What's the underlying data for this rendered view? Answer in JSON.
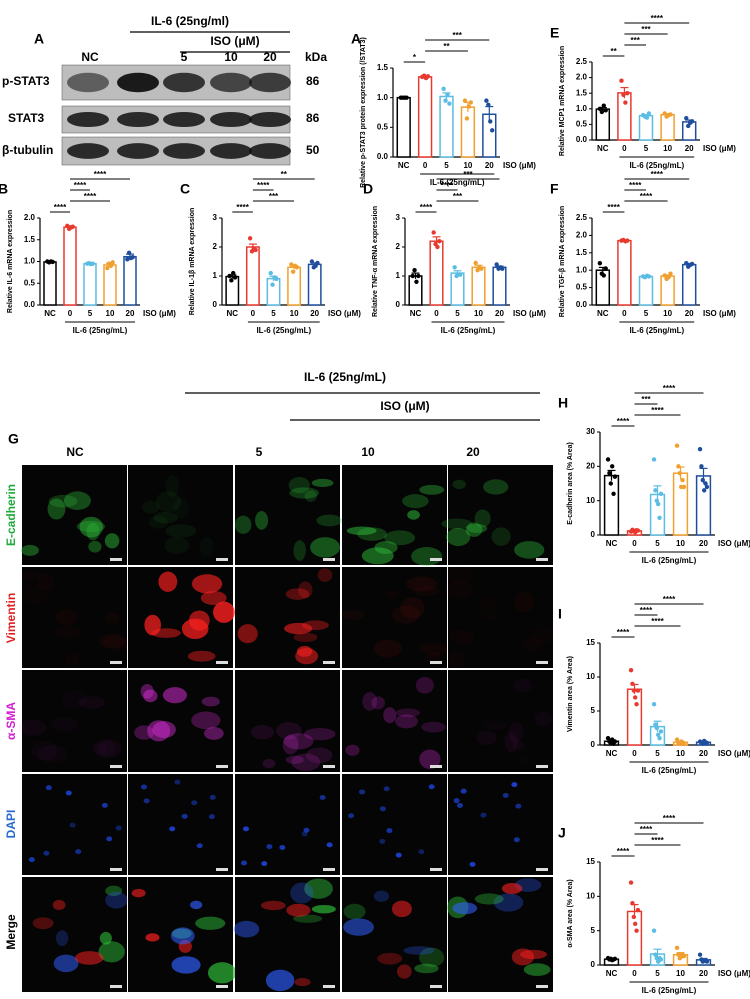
{
  "blot": {
    "panel": "A",
    "treatment": "IL-6 (25ng/ml)",
    "subtreatment": "ISO (μM)",
    "lanes": [
      "NC",
      "5",
      "10",
      "20"
    ],
    "unit": "kDa",
    "rows": [
      {
        "label": "p-STAT3",
        "kda": "86"
      },
      {
        "label": "STAT3",
        "kda": "86"
      },
      {
        "label": "β-tubulin",
        "kda": "50"
      }
    ]
  },
  "images": {
    "panel": "G",
    "treatment": "IL-6 (25ng/mL)",
    "subtreatment": "ISO (μM)",
    "columns": [
      "NC",
      "5",
      "10",
      "20"
    ],
    "rows": [
      "E-cadherin",
      "Vimentin",
      "α-SMA",
      "DAPI",
      "Merge"
    ]
  },
  "chart_data": [
    {
      "type": "bar",
      "panel": "A",
      "ylabel": "Relative p-STAT3 protein expression (/STAT3)",
      "categories": [
        "NC",
        "0",
        "5",
        "10",
        "20"
      ],
      "xlabel": "ISO (μM)",
      "group_label": "IL-6 (25ng/mL)",
      "ylim": [
        0,
        1.5
      ],
      "yticks": [
        {
          "value": 0,
          "label": "0.0"
        },
        {
          "value": 0.5,
          "label": "0.5"
        },
        {
          "value": 1,
          "label": "1.0"
        },
        {
          "value": 1.5,
          "label": "1.5"
        }
      ],
      "colors": [
        "#000000",
        "#e8392f",
        "#5bbde3",
        "#f0a030",
        "#1f4e9c"
      ],
      "values": [
        1.0,
        1.35,
        1.02,
        0.84,
        0.72
      ],
      "errors": [
        0,
        0.015,
        0.06,
        0.08,
        0.13
      ],
      "points": [
        [
          1,
          1,
          1,
          1
        ],
        [
          1.35,
          1.37,
          1.33,
          1.36
        ],
        [
          1.15,
          0.95,
          1.05,
          0.9
        ],
        [
          0.95,
          0.65,
          0.85,
          0.92
        ],
        [
          0.95,
          0.88,
          0.6,
          0.45
        ]
      ],
      "brackets": [
        {
          "pair": [
            "NC",
            "0"
          ],
          "label": "*"
        },
        {
          "pair": [
            "0",
            "10"
          ],
          "label": "**"
        },
        {
          "pair": [
            "0",
            "20"
          ],
          "label": "***"
        }
      ]
    },
    {
      "type": "bar",
      "panel": "E",
      "ylabel": "Relative MCP1 mRNA expression",
      "categories": [
        "NC",
        "0",
        "5",
        "10",
        "20"
      ],
      "xlabel": "ISO (μM)",
      "group_label": "IL-6 (25ng/mL)",
      "ylim": [
        0,
        2.5
      ],
      "yticks": [
        {
          "value": 0,
          "label": "0.0"
        },
        {
          "value": 0.5,
          "label": "0.5"
        },
        {
          "value": 1,
          "label": "1.0"
        },
        {
          "value": 1.5,
          "label": "1.5"
        },
        {
          "value": 2,
          "label": "2.0"
        },
        {
          "value": 2.5,
          "label": "2.5"
        }
      ],
      "colors": [
        "#000000",
        "#e8392f",
        "#5bbde3",
        "#f0a030",
        "#1f4e9c"
      ],
      "values": [
        0.99,
        1.51,
        0.78,
        0.81,
        0.58
      ],
      "errors": [
        0.05,
        0.17,
        0.03,
        0.03,
        0.06
      ],
      "points": [
        [
          1.0,
          0.9,
          1.1,
          0.95
        ],
        [
          1.9,
          1.45,
          1.2,
          1.5
        ],
        [
          0.8,
          0.75,
          0.72,
          0.85
        ],
        [
          0.85,
          0.75,
          0.8,
          0.82
        ],
        [
          0.7,
          0.45,
          0.55,
          0.6
        ]
      ],
      "brackets": [
        {
          "pair": [
            "NC",
            "0"
          ],
          "label": "**"
        },
        {
          "pair": [
            "0",
            "5"
          ],
          "label": "***"
        },
        {
          "pair": [
            "0",
            "10"
          ],
          "label": "***"
        },
        {
          "pair": [
            "0",
            "20"
          ],
          "label": "****"
        }
      ]
    },
    {
      "type": "bar",
      "panel": "B",
      "ylabel": "Relative IL-6 mRNA expression",
      "categories": [
        "NC",
        "0",
        "5",
        "10",
        "20"
      ],
      "xlabel": "ISO (μM)",
      "group_label": "IL-6 (25ng/mL)",
      "ylim": [
        0,
        2
      ],
      "yticks": [
        {
          "value": 0,
          "label": "0.0"
        },
        {
          "value": 0.5,
          "label": "0.5"
        },
        {
          "value": 1,
          "label": "1.0"
        },
        {
          "value": 1.5,
          "label": "1.5"
        },
        {
          "value": 2,
          "label": "2.0"
        }
      ],
      "colors": [
        "#000000",
        "#e8392f",
        "#5bbde3",
        "#f0a030",
        "#1f4e9c"
      ],
      "values": [
        0.99,
        1.79,
        0.95,
        0.92,
        1.11
      ],
      "errors": [
        0.01,
        0.03,
        0.01,
        0.04,
        0.06
      ],
      "points": [
        [
          1,
          0.98,
          1.0,
          0.99
        ],
        [
          1.82,
          1.75,
          1.78,
          1.8
        ],
        [
          0.95,
          0.96,
          0.94,
          0.95
        ],
        [
          0.85,
          0.95,
          0.9,
          0.98
        ],
        [
          1.05,
          1.2,
          1.08,
          1.1
        ]
      ],
      "brackets": [
        {
          "pair": [
            "NC",
            "0"
          ],
          "label": "****"
        },
        {
          "pair": [
            "0",
            "10"
          ],
          "label": "****"
        },
        {
          "pair": [
            "0",
            "5"
          ],
          "label": "****"
        },
        {
          "pair": [
            "0",
            "20"
          ],
          "label": "****"
        }
      ]
    },
    {
      "type": "bar",
      "panel": "C",
      "ylabel": "Relative IL-1β mRNA expression",
      "categories": [
        "NC",
        "0",
        "5",
        "10",
        "20"
      ],
      "xlabel": "ISO (μM)",
      "group_label": "IL-6 (25ng/mL)",
      "ylim": [
        0,
        3
      ],
      "yticks": [
        0,
        1,
        2,
        3
      ],
      "colors": [
        "#000000",
        "#e8392f",
        "#5bbde3",
        "#f0a030",
        "#1f4e9c"
      ],
      "values": [
        0.98,
        2.0,
        0.91,
        1.3,
        1.4
      ],
      "errors": [
        0.06,
        0.1,
        0.08,
        0.06,
        0.05
      ],
      "points": [
        [
          1.0,
          0.85,
          1.1,
          0.95
        ],
        [
          2.3,
          1.85,
          1.95,
          1.9
        ],
        [
          1.1,
          0.7,
          0.95,
          0.9
        ],
        [
          1.4,
          1.15,
          1.35,
          1.3
        ],
        [
          1.5,
          1.3,
          1.35,
          1.45
        ]
      ],
      "brackets": [
        {
          "pair": [
            "NC",
            "0"
          ],
          "label": "****"
        },
        {
          "pair": [
            "0",
            "10"
          ],
          "label": "***"
        },
        {
          "pair": [
            "0",
            "5"
          ],
          "label": "****"
        },
        {
          "pair": [
            "0",
            "20"
          ],
          "label": "**"
        }
      ]
    },
    {
      "type": "bar",
      "panel": "D",
      "ylabel": "Relative TNF-α mRNA expression",
      "categories": [
        "NC",
        "0",
        "5",
        "10",
        "20"
      ],
      "xlabel": "ISO (μM)",
      "group_label": "IL-6 (25ng/mL)",
      "ylim": [
        0,
        3
      ],
      "yticks": [
        0,
        1,
        2,
        3
      ],
      "colors": [
        "#000000",
        "#e8392f",
        "#5bbde3",
        "#f0a030",
        "#1f4e9c"
      ],
      "values": [
        1.0,
        2.2,
        1.1,
        1.3,
        1.3
      ],
      "errors": [
        0.1,
        0.15,
        0.08,
        0.07,
        0.04
      ],
      "points": [
        [
          1,
          1.2,
          0.8,
          1.0
        ],
        [
          2.5,
          2.1,
          2.0,
          2.2
        ],
        [
          1.3,
          1.0,
          1.05,
          1.05
        ],
        [
          1.45,
          1.2,
          1.3,
          1.25
        ],
        [
          1.4,
          1.25,
          1.3,
          1.25
        ]
      ],
      "brackets": [
        {
          "pair": [
            "NC",
            "0"
          ],
          "label": "****"
        },
        {
          "pair": [
            "0",
            "10"
          ],
          "label": "***"
        },
        {
          "pair": [
            "0",
            "5"
          ],
          "label": "****"
        },
        {
          "pair": [
            "0",
            "20"
          ],
          "label": "***"
        }
      ]
    },
    {
      "type": "bar",
      "panel": "F",
      "ylabel": "Relative TGF-β mRNA expression",
      "categories": [
        "NC",
        "0",
        "5",
        "10",
        "20"
      ],
      "xlabel": "ISO (μM)",
      "group_label": "IL-6 (25ng/mL)",
      "ylim": [
        0,
        2.5
      ],
      "yticks": [
        {
          "value": 0,
          "label": "0.0"
        },
        {
          "value": 0.5,
          "label": "0.5"
        },
        {
          "value": 1,
          "label": "1.0"
        },
        {
          "value": 1.5,
          "label": "1.5"
        },
        {
          "value": 2,
          "label": "2.0"
        },
        {
          "value": 2.5,
          "label": "2.5"
        }
      ],
      "colors": [
        "#000000",
        "#e8392f",
        "#5bbde3",
        "#f0a030",
        "#1f4e9c"
      ],
      "values": [
        1.0,
        1.85,
        0.82,
        0.83,
        1.16
      ],
      "errors": [
        0.08,
        0.01,
        0.01,
        0.03,
        0.03
      ],
      "points": [
        [
          1.2,
          0.9,
          0.85,
          1.05
        ],
        [
          1.85,
          1.87,
          1.83,
          1.85
        ],
        [
          0.82,
          0.8,
          0.84,
          0.82
        ],
        [
          0.85,
          0.75,
          0.8,
          0.9
        ],
        [
          1.2,
          1.1,
          1.15,
          1.18
        ]
      ],
      "brackets": [
        {
          "pair": [
            "NC",
            "0"
          ],
          "label": "****"
        },
        {
          "pair": [
            "0",
            "10"
          ],
          "label": "****"
        },
        {
          "pair": [
            "0",
            "5"
          ],
          "label": "****"
        },
        {
          "pair": [
            "0",
            "20"
          ],
          "label": "****"
        }
      ]
    },
    {
      "type": "bar",
      "panel": "H",
      "ylabel": "E-cadherin area (% Area)",
      "categories": [
        "NC",
        "0",
        "5",
        "10",
        "20"
      ],
      "xlabel": "ISO (μM)",
      "group_label": "IL-6 (25ng/mL)",
      "ylim": [
        0,
        30
      ],
      "yticks": [
        0,
        10,
        20,
        30
      ],
      "colors": [
        "#000000",
        "#e8392f",
        "#5bbde3",
        "#f0a030",
        "#1f4e9c"
      ],
      "values": [
        17.3,
        1.2,
        11.8,
        18,
        17.2
      ],
      "errors": [
        1.5,
        0.1,
        2.5,
        1.8,
        2.2
      ],
      "points": [
        [
          22,
          18,
          15,
          20,
          12,
          17
        ],
        [
          1,
          1.5,
          1.2,
          0.8,
          1.4,
          1.3
        ],
        [
          22,
          13,
          10,
          9,
          5,
          12
        ],
        [
          26,
          20,
          18,
          14,
          16,
          14
        ],
        [
          25,
          20,
          16,
          13,
          15,
          14
        ]
      ],
      "brackets": [
        {
          "pair": [
            "NC",
            "0"
          ],
          "label": "****"
        },
        {
          "pair": [
            "0",
            "10"
          ],
          "label": "****"
        },
        {
          "pair": [
            "0",
            "5"
          ],
          "label": "***"
        },
        {
          "pair": [
            "0",
            "20"
          ],
          "label": "****"
        }
      ]
    },
    {
      "type": "bar",
      "panel": "I",
      "ylabel": "Vimentin area (% Area)",
      "categories": [
        "NC",
        "0",
        "5",
        "10",
        "20"
      ],
      "xlabel": "ISO (μM)",
      "group_label": "IL-6 (25ng/mL)",
      "ylim": [
        0,
        15
      ],
      "yticks": [
        0,
        5,
        10,
        15
      ],
      "colors": [
        "#000000",
        "#e8392f",
        "#5bbde3",
        "#f0a030",
        "#1f4e9c"
      ],
      "values": [
        0.55,
        8.2,
        2.7,
        0.4,
        0.4
      ],
      "errors": [
        0.2,
        0.7,
        0.8,
        0.1,
        0.1
      ],
      "points": [
        [
          1,
          0.5,
          0.3,
          0.8,
          0.2,
          0.5
        ],
        [
          11,
          9,
          8,
          7,
          6,
          8
        ],
        [
          6,
          3,
          2.5,
          1.5,
          1,
          2
        ],
        [
          0.8,
          0.3,
          0.2,
          0.5,
          0.4,
          0.2
        ],
        [
          0.5,
          0.3,
          0.2,
          0.6,
          0.4,
          0.3
        ]
      ],
      "brackets": [
        {
          "pair": [
            "NC",
            "0"
          ],
          "label": "****"
        },
        {
          "pair": [
            "0",
            "10"
          ],
          "label": "****"
        },
        {
          "pair": [
            "0",
            "5"
          ],
          "label": "****"
        },
        {
          "pair": [
            "0",
            "20"
          ],
          "label": "****"
        }
      ]
    },
    {
      "type": "bar",
      "panel": "J",
      "ylabel": "α-SMA area (% Area)",
      "categories": [
        "NC",
        "0",
        "5",
        "10",
        "20"
      ],
      "xlabel": "ISO (μM)",
      "group_label": "IL-6 (25ng/mL)",
      "ylim": [
        0,
        15
      ],
      "yticks": [
        0,
        5,
        10,
        15
      ],
      "colors": [
        "#000000",
        "#e8392f",
        "#5bbde3",
        "#f0a030",
        "#1f4e9c"
      ],
      "values": [
        0.85,
        7.8,
        1.6,
        1.5,
        0.75
      ],
      "errors": [
        0.05,
        1.0,
        0.7,
        0.3,
        0.2
      ],
      "points": [
        [
          1,
          0.8,
          0.9,
          0.7,
          0.8,
          0.9
        ],
        [
          12,
          9,
          7,
          6,
          5,
          8
        ],
        [
          5,
          1.5,
          1,
          0.5,
          1,
          0.8
        ],
        [
          2.5,
          1.5,
          1,
          1.2,
          1.5,
          1.3
        ],
        [
          1.5,
          0.8,
          0.5,
          0.6,
          0.7,
          0.5
        ]
      ],
      "brackets": [
        {
          "pair": [
            "NC",
            "0"
          ],
          "label": "****"
        },
        {
          "pair": [
            "0",
            "10"
          ],
          "label": "****"
        },
        {
          "pair": [
            "0",
            "5"
          ],
          "label": "****"
        },
        {
          "pair": [
            "0",
            "20"
          ],
          "label": "****"
        }
      ]
    }
  ]
}
